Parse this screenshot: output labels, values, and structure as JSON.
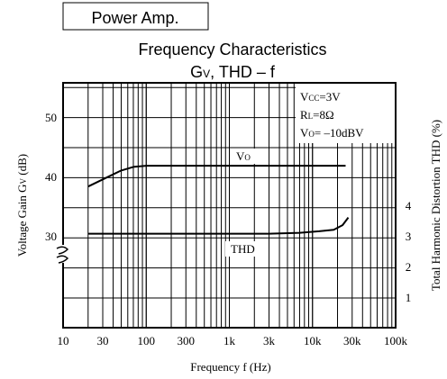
{
  "header": {
    "box_label": "Power Amp.",
    "title": "Frequency Characteristics",
    "subtitle_main": "G",
    "subtitle_sub": "V",
    "subtitle_rest": ", THD – f"
  },
  "conditions": [
    {
      "main": "V",
      "sub": "CC",
      "rest": "=3V"
    },
    {
      "main": "R",
      "sub": "L",
      "rest": "=8Ω"
    },
    {
      "main": "V",
      "sub": "O",
      "rest": "= –10dBV"
    }
  ],
  "chart_data": {
    "type": "line",
    "title": "Frequency Characteristics",
    "x_axis": {
      "label": "Frequency f (Hz)",
      "scale": "log",
      "range": [
        10,
        100000
      ],
      "ticks": [
        {
          "value": 10,
          "label": "10"
        },
        {
          "value": 30,
          "label": "30"
        },
        {
          "value": 100,
          "label": "100"
        },
        {
          "value": 300,
          "label": "300"
        },
        {
          "value": 1000,
          "label": "1k"
        },
        {
          "value": 3000,
          "label": "3k"
        },
        {
          "value": 10000,
          "label": "10k"
        },
        {
          "value": 30000,
          "label": "30k"
        },
        {
          "value": 100000,
          "label": "100k"
        }
      ]
    },
    "y_axis_left": {
      "label": "Voltage Gain G",
      "label_sub": "V",
      "label_unit": " (dB)",
      "broken_axis": true,
      "ticks": [
        {
          "value": 50,
          "label": "50"
        },
        {
          "value": 40,
          "label": "40"
        },
        {
          "value": 30,
          "label": "30"
        }
      ]
    },
    "y_axis_right": {
      "label": "Total Harmonic Distortion THD (%)",
      "range": [
        0,
        7
      ],
      "ticks": [
        {
          "value": 4,
          "label": "4"
        },
        {
          "value": 3,
          "label": "3"
        },
        {
          "value": 2,
          "label": "2"
        },
        {
          "value": 1,
          "label": "1"
        }
      ]
    },
    "grid": true,
    "series": [
      {
        "name": "V",
        "name_sub": "O",
        "axis": "left",
        "x": [
          20,
          30,
          50,
          70,
          100,
          200,
          500,
          1000,
          3000,
          10000,
          25000
        ],
        "y": [
          38.3,
          39.5,
          41.0,
          41.6,
          41.8,
          41.8,
          41.8,
          41.8,
          41.8,
          41.8,
          41.8
        ]
      },
      {
        "name": "THD",
        "axis": "right",
        "x": [
          20,
          50,
          100,
          300,
          1000,
          3000,
          7000,
          12000,
          18000,
          23000,
          27000
        ],
        "y": [
          3.07,
          3.07,
          3.07,
          3.07,
          3.07,
          3.07,
          3.1,
          3.15,
          3.2,
          3.35,
          3.6
        ]
      }
    ]
  }
}
